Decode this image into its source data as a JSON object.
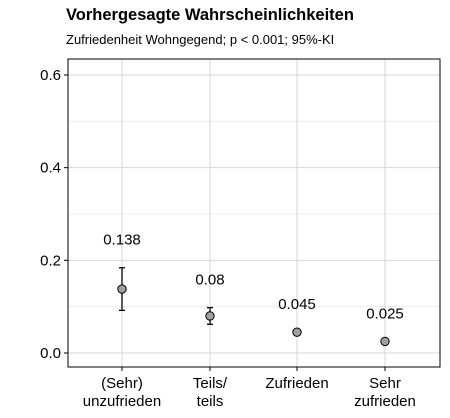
{
  "chart_data": {
    "type": "scatter",
    "title": "Vorhergesagte Wahrscheinlichkeiten",
    "subtitle": "Zufriedenheit Wohngegend; p < 0.001; 95%-KI",
    "xlabel": "",
    "ylabel": "",
    "ylim": [
      0,
      0.6
    ],
    "yticks": [
      "0.0",
      "0.2",
      "0.4",
      "0.6"
    ],
    "grid": true,
    "categories": [
      [
        "(Sehr)",
        "unzufrieden"
      ],
      [
        "Teils/",
        "teils"
      ],
      [
        "Zufrieden"
      ],
      [
        "Sehr",
        "zufrieden"
      ]
    ],
    "values": [
      0.138,
      0.08,
      0.045,
      0.025
    ],
    "labels": [
      "0.138",
      "0.08",
      "0.045",
      "0.025"
    ],
    "ci_low": [
      0.092,
      0.062,
      0.045,
      0.025
    ],
    "ci_high": [
      0.184,
      0.098,
      0.045,
      0.025
    ],
    "point_color": "#a0a0a0"
  }
}
